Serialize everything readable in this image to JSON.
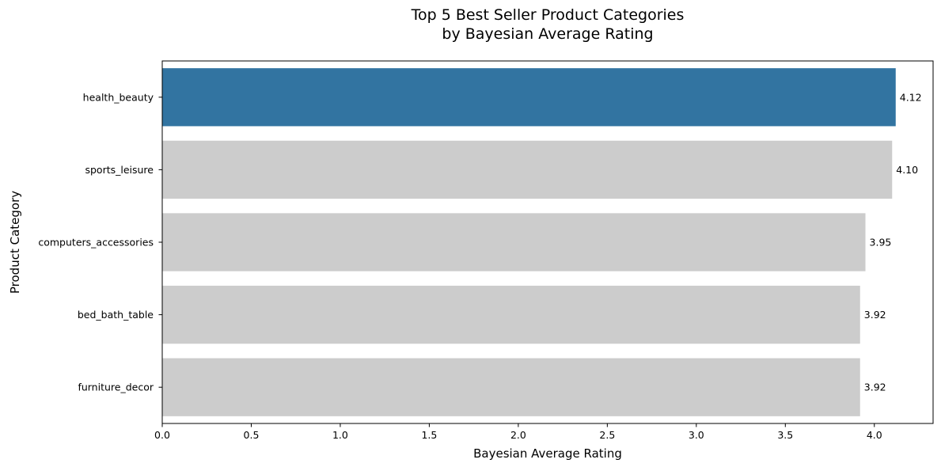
{
  "chart_data": {
    "type": "bar",
    "orientation": "horizontal",
    "title_line1": "Top 5 Best Seller Product Categories",
    "title_line2": "by Bayesian Average Rating",
    "xlabel": "Bayesian Average Rating",
    "ylabel": "Product Category",
    "categories": [
      "health_beauty",
      "sports_leisure",
      "computers_accessories",
      "bed_bath_table",
      "furniture_decor"
    ],
    "values": [
      4.12,
      4.1,
      3.95,
      3.92,
      3.92
    ],
    "value_labels": [
      "4.12",
      "4.10",
      "3.95",
      "3.92",
      "3.92"
    ],
    "xlim": [
      0.0,
      4.33
    ],
    "xticks": [
      0.0,
      0.5,
      1.0,
      1.5,
      2.0,
      2.5,
      3.0,
      3.5,
      4.0
    ],
    "xtick_labels": [
      "0.0",
      "0.5",
      "1.0",
      "1.5",
      "2.0",
      "2.5",
      "3.0",
      "3.5",
      "4.0"
    ],
    "highlight_index": 0,
    "highlight_color": "#3274a1",
    "bar_color": "#cccccc",
    "grid": false,
    "legend": "none"
  }
}
